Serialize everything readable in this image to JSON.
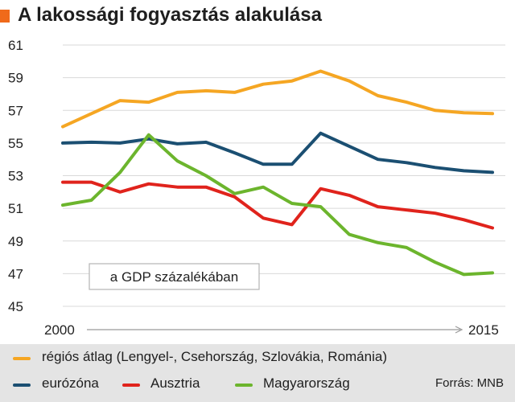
{
  "title": "A lakossági fogyasztás alakulása",
  "note": "a GDP százalékában",
  "source": "Forrás: MNB",
  "colors": {
    "accent": "#f06a1a",
    "legend_bg": "#e4e4e4",
    "grid": "#d9d9d9"
  },
  "chart_data": {
    "type": "line",
    "x": [
      2000,
      2001,
      2002,
      2003,
      2004,
      2005,
      2006,
      2007,
      2008,
      2009,
      2010,
      2011,
      2012,
      2013,
      2014,
      2015
    ],
    "x_tick_labels": [
      "2000",
      "2015"
    ],
    "ylim": [
      45,
      61
    ],
    "y_ticks": [
      45,
      47,
      49,
      51,
      53,
      55,
      57,
      59,
      61
    ],
    "grid": true,
    "series": [
      {
        "name": "régiós átlag (Lengyel-, Csehország, Szlovákia, Románia)",
        "color": "#f5a623",
        "values": [
          56.0,
          56.8,
          57.6,
          57.5,
          58.1,
          58.2,
          58.1,
          58.6,
          58.8,
          59.4,
          58.8,
          57.9,
          57.5,
          57.0,
          56.85,
          56.8
        ]
      },
      {
        "name": "eurózóna",
        "color": "#1b4f72",
        "values": [
          55.0,
          55.05,
          55.0,
          55.25,
          54.95,
          55.05,
          54.4,
          53.7,
          53.7,
          55.6,
          54.8,
          54.0,
          53.8,
          53.5,
          53.3,
          53.2
        ]
      },
      {
        "name": "Ausztria",
        "color": "#e0231c",
        "values": [
          52.6,
          52.6,
          52.0,
          52.5,
          52.3,
          52.3,
          51.7,
          50.4,
          50.0,
          52.2,
          51.8,
          51.1,
          50.9,
          50.7,
          50.3,
          49.8
        ]
      },
      {
        "name": "Magyarország",
        "color": "#6cb52d",
        "values": [
          51.2,
          51.5,
          53.2,
          55.5,
          53.9,
          53.0,
          51.9,
          52.3,
          51.3,
          51.1,
          49.4,
          48.9,
          48.6,
          47.7,
          46.95,
          47.05
        ]
      }
    ]
  }
}
